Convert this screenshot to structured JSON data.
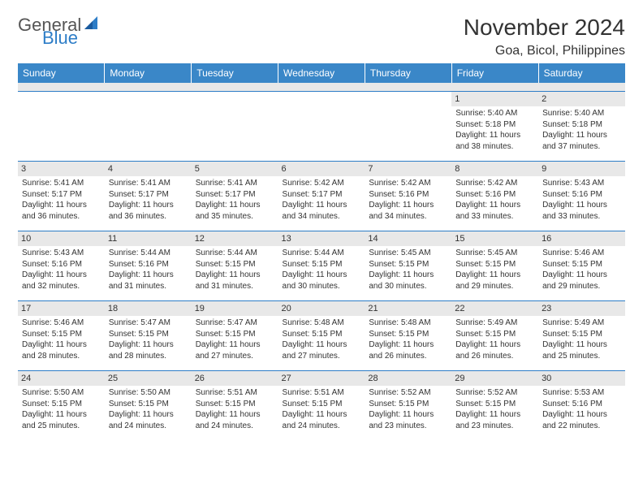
{
  "logo": {
    "general": "General",
    "blue": "Blue"
  },
  "title": "November 2024",
  "location": "Goa, Bicol, Philippines",
  "colors": {
    "header_bg": "#3a87c8",
    "header_text": "#ffffff",
    "border": "#2d7dc7",
    "daynum_bg": "#e8e8e8",
    "text": "#333333",
    "logo_gray": "#555555",
    "logo_blue": "#2d7dc7"
  },
  "dayNames": [
    "Sunday",
    "Monday",
    "Tuesday",
    "Wednesday",
    "Thursday",
    "Friday",
    "Saturday"
  ],
  "weeks": [
    [
      null,
      null,
      null,
      null,
      null,
      {
        "n": "1",
        "sr": "5:40 AM",
        "ss": "5:18 PM",
        "dl": "11 hours and 38 minutes."
      },
      {
        "n": "2",
        "sr": "5:40 AM",
        "ss": "5:18 PM",
        "dl": "11 hours and 37 minutes."
      }
    ],
    [
      {
        "n": "3",
        "sr": "5:41 AM",
        "ss": "5:17 PM",
        "dl": "11 hours and 36 minutes."
      },
      {
        "n": "4",
        "sr": "5:41 AM",
        "ss": "5:17 PM",
        "dl": "11 hours and 36 minutes."
      },
      {
        "n": "5",
        "sr": "5:41 AM",
        "ss": "5:17 PM",
        "dl": "11 hours and 35 minutes."
      },
      {
        "n": "6",
        "sr": "5:42 AM",
        "ss": "5:17 PM",
        "dl": "11 hours and 34 minutes."
      },
      {
        "n": "7",
        "sr": "5:42 AM",
        "ss": "5:16 PM",
        "dl": "11 hours and 34 minutes."
      },
      {
        "n": "8",
        "sr": "5:42 AM",
        "ss": "5:16 PM",
        "dl": "11 hours and 33 minutes."
      },
      {
        "n": "9",
        "sr": "5:43 AM",
        "ss": "5:16 PM",
        "dl": "11 hours and 33 minutes."
      }
    ],
    [
      {
        "n": "10",
        "sr": "5:43 AM",
        "ss": "5:16 PM",
        "dl": "11 hours and 32 minutes."
      },
      {
        "n": "11",
        "sr": "5:44 AM",
        "ss": "5:16 PM",
        "dl": "11 hours and 31 minutes."
      },
      {
        "n": "12",
        "sr": "5:44 AM",
        "ss": "5:15 PM",
        "dl": "11 hours and 31 minutes."
      },
      {
        "n": "13",
        "sr": "5:44 AM",
        "ss": "5:15 PM",
        "dl": "11 hours and 30 minutes."
      },
      {
        "n": "14",
        "sr": "5:45 AM",
        "ss": "5:15 PM",
        "dl": "11 hours and 30 minutes."
      },
      {
        "n": "15",
        "sr": "5:45 AM",
        "ss": "5:15 PM",
        "dl": "11 hours and 29 minutes."
      },
      {
        "n": "16",
        "sr": "5:46 AM",
        "ss": "5:15 PM",
        "dl": "11 hours and 29 minutes."
      }
    ],
    [
      {
        "n": "17",
        "sr": "5:46 AM",
        "ss": "5:15 PM",
        "dl": "11 hours and 28 minutes."
      },
      {
        "n": "18",
        "sr": "5:47 AM",
        "ss": "5:15 PM",
        "dl": "11 hours and 28 minutes."
      },
      {
        "n": "19",
        "sr": "5:47 AM",
        "ss": "5:15 PM",
        "dl": "11 hours and 27 minutes."
      },
      {
        "n": "20",
        "sr": "5:48 AM",
        "ss": "5:15 PM",
        "dl": "11 hours and 27 minutes."
      },
      {
        "n": "21",
        "sr": "5:48 AM",
        "ss": "5:15 PM",
        "dl": "11 hours and 26 minutes."
      },
      {
        "n": "22",
        "sr": "5:49 AM",
        "ss": "5:15 PM",
        "dl": "11 hours and 26 minutes."
      },
      {
        "n": "23",
        "sr": "5:49 AM",
        "ss": "5:15 PM",
        "dl": "11 hours and 25 minutes."
      }
    ],
    [
      {
        "n": "24",
        "sr": "5:50 AM",
        "ss": "5:15 PM",
        "dl": "11 hours and 25 minutes."
      },
      {
        "n": "25",
        "sr": "5:50 AM",
        "ss": "5:15 PM",
        "dl": "11 hours and 24 minutes."
      },
      {
        "n": "26",
        "sr": "5:51 AM",
        "ss": "5:15 PM",
        "dl": "11 hours and 24 minutes."
      },
      {
        "n": "27",
        "sr": "5:51 AM",
        "ss": "5:15 PM",
        "dl": "11 hours and 24 minutes."
      },
      {
        "n": "28",
        "sr": "5:52 AM",
        "ss": "5:15 PM",
        "dl": "11 hours and 23 minutes."
      },
      {
        "n": "29",
        "sr": "5:52 AM",
        "ss": "5:15 PM",
        "dl": "11 hours and 23 minutes."
      },
      {
        "n": "30",
        "sr": "5:53 AM",
        "ss": "5:16 PM",
        "dl": "11 hours and 22 minutes."
      }
    ]
  ],
  "labels": {
    "sunrise": "Sunrise: ",
    "sunset": "Sunset: ",
    "daylight": "Daylight: "
  }
}
